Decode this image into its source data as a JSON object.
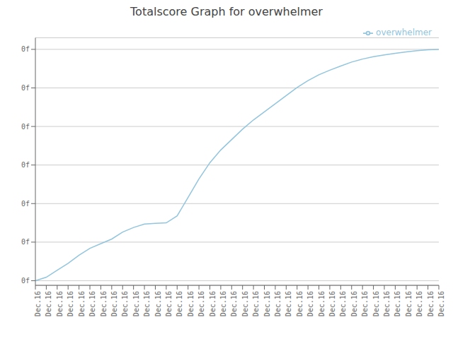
{
  "chart_data": {
    "type": "line",
    "title": "Totalscore Graph for overwhelmer",
    "categories": [
      "Dec.16",
      "Dec.16",
      "Dec.16",
      "Dec.16",
      "Dec.16",
      "Dec.16",
      "Dec.16",
      "Dec.16",
      "Dec.16",
      "Dec.16",
      "Dec.16",
      "Dec.16",
      "Dec.16",
      "Dec.16",
      "Dec.16",
      "Dec.16",
      "Dec.16",
      "Dec.16",
      "Dec.16",
      "Dec.16",
      "Dec.16",
      "Dec.16",
      "Dec.16",
      "Dec.16",
      "Dec.16",
      "Dec.16",
      "Dec.16",
      "Dec.16",
      "Dec.16",
      "Dec.16",
      "Dec.16",
      "Dec.16",
      "Dec.16",
      "Dec.16",
      "Dec.16",
      "Dec.16",
      "Dec.16",
      "Dec.16"
    ],
    "series": [
      {
        "name": "overwhelmer",
        "color": "#92c5de",
        "values": [
          0.0,
          0.015,
          0.045,
          0.075,
          0.11,
          0.14,
          0.16,
          0.18,
          0.21,
          0.23,
          0.245,
          0.248,
          0.25,
          0.28,
          0.36,
          0.44,
          0.51,
          0.565,
          0.61,
          0.655,
          0.695,
          0.73,
          0.765,
          0.8,
          0.835,
          0.865,
          0.89,
          0.91,
          0.928,
          0.945,
          0.958,
          0.968,
          0.976,
          0.983,
          0.989,
          0.994,
          0.998,
          1.0
        ]
      }
    ],
    "ylim": [
      -0.02,
      1.05
    ],
    "yticks": [
      {
        "value": 0,
        "label": "0f"
      },
      {
        "value": 0.16666666666666666,
        "label": "0f"
      },
      {
        "value": 0.3333333333333333,
        "label": "0f"
      },
      {
        "value": 0.5,
        "label": "0f"
      },
      {
        "value": 0.6666666666666666,
        "label": "0f"
      },
      {
        "value": 0.8333333333333333,
        "label": "0f"
      },
      {
        "value": 1.0,
        "label": "0f"
      }
    ],
    "grid": true,
    "legend": "upper right"
  }
}
